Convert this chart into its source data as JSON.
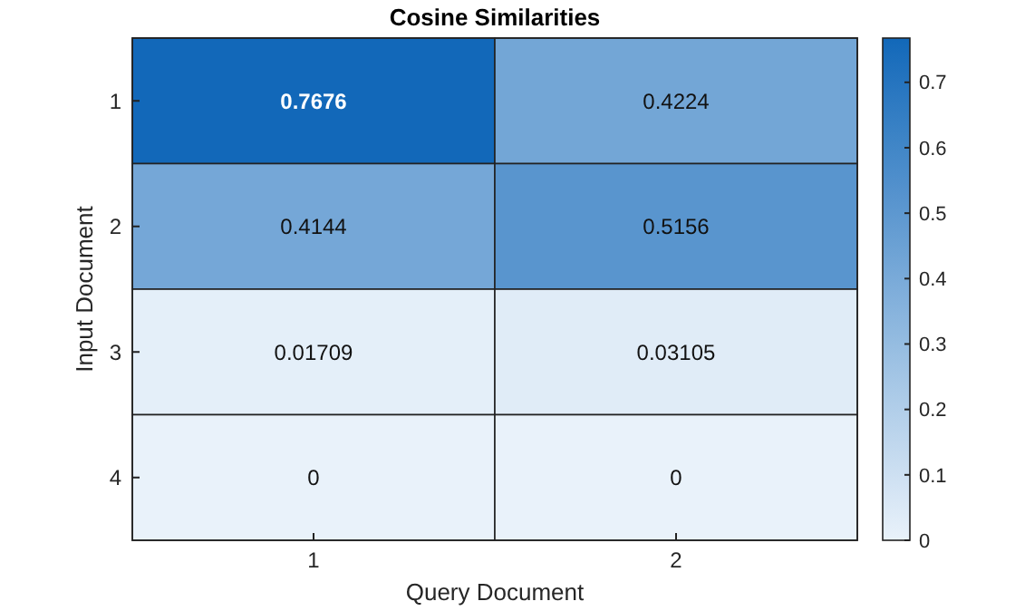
{
  "chart_data": {
    "type": "heatmap",
    "title": "Cosine Similarities",
    "xlabel": "Query Document",
    "ylabel": "Input Document",
    "categories": [
      "1",
      "2"
    ],
    "y_categories": [
      "1",
      "2",
      "3",
      "4"
    ],
    "cells": [
      [
        0.7676,
        0.4224
      ],
      [
        0.4144,
        0.5156
      ],
      [
        0.01709,
        0.03105
      ],
      [
        0,
        0
      ]
    ],
    "clim": [
      0,
      0.7676
    ],
    "cticks": [
      0,
      0.1,
      0.2,
      0.3,
      0.4,
      0.5,
      0.6,
      0.7
    ],
    "data_labels": true
  }
}
